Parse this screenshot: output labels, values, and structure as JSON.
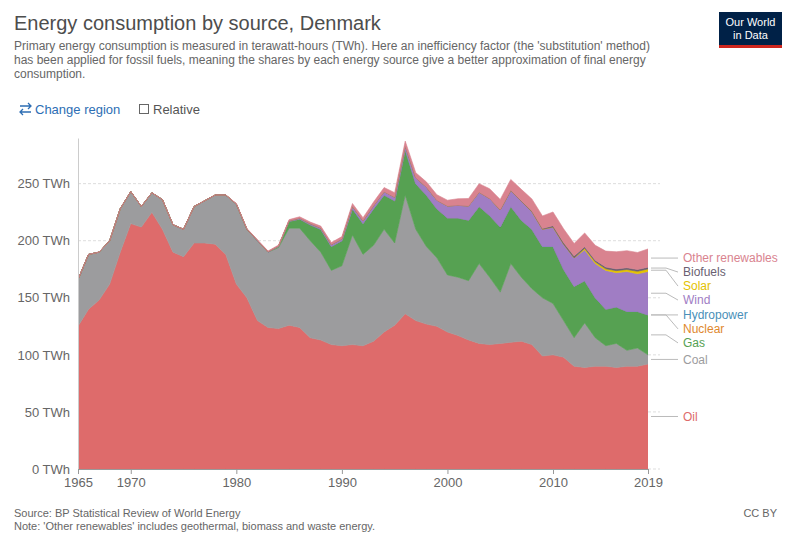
{
  "chart_data": {
    "type": "area",
    "title": "Energy consumption by source, Denmark",
    "subtitle": [
      "Primary energy consumption is measured in terawatt-hours (TWh). Here an inefficiency factor (the 'substitution' method)",
      "has been applied for fossil fuels, meaning the shares by each energy source give a better approximation of final energy",
      "consumption."
    ],
    "logo_text": [
      "Our World",
      "in Data"
    ],
    "controls": [
      "Change region",
      "Relative"
    ],
    "source": "Source: BP Statistical Review of World Energy",
    "note": "Note: 'Other renewables' includes geothermal, biomass and waste energy.",
    "license": "CC BY",
    "stacked": true,
    "grid": true,
    "legend": "right",
    "x": [
      1965,
      1966,
      1967,
      1968,
      1969,
      1970,
      1971,
      1972,
      1973,
      1974,
      1975,
      1976,
      1977,
      1978,
      1979,
      1980,
      1981,
      1982,
      1983,
      1984,
      1985,
      1986,
      1987,
      1988,
      1989,
      1990,
      1991,
      1992,
      1993,
      1994,
      1995,
      1996,
      1997,
      1998,
      1999,
      2000,
      2001,
      2002,
      2003,
      2004,
      2005,
      2006,
      2007,
      2008,
      2009,
      2010,
      2011,
      2012,
      2013,
      2014,
      2015,
      2016,
      2017,
      2018,
      2019
    ],
    "xlim": [
      1965,
      2019
    ],
    "xticks": [
      1965,
      1970,
      1980,
      1990,
      2000,
      2010,
      2019
    ],
    "ylim": [
      0,
      290
    ],
    "yticks": [
      {
        "value": 0,
        "label": "0 TWh"
      },
      {
        "value": 50,
        "label": "50 TWh"
      },
      {
        "value": 100,
        "label": "100 TWh"
      },
      {
        "value": 150,
        "label": "150 TWh"
      },
      {
        "value": 200,
        "label": "200 TWh"
      },
      {
        "value": 250,
        "label": "250 TWh"
      }
    ],
    "series": [
      {
        "name": "Oil",
        "color": "#de6b6b",
        "values": [
          125,
          140,
          148,
          162,
          190,
          215,
          212,
          225,
          210,
          190,
          186,
          198,
          198,
          197,
          188,
          162,
          150,
          130,
          124,
          123,
          126,
          124,
          115,
          113,
          109,
          108,
          109,
          108,
          112,
          120,
          126,
          136,
          130,
          127,
          125,
          120,
          117,
          113,
          110,
          109,
          110,
          111,
          112,
          109,
          99,
          100,
          98,
          90,
          89,
          90,
          90,
          89,
          90,
          90,
          92
        ]
      },
      {
        "name": "Coal",
        "color": "#9c9c9e",
        "values": [
          41,
          48,
          42,
          38,
          38,
          28,
          18,
          17,
          26,
          24,
          24,
          32,
          37,
          43,
          52,
          70,
          60,
          70,
          66,
          71,
          85,
          87,
          85,
          77,
          65,
          70,
          96,
          80,
          84,
          90,
          72,
          104,
          80,
          68,
          60,
          50,
          51,
          52,
          70,
          59,
          45,
          69,
          56,
          49,
          51,
          45,
          32,
          25,
          39,
          25,
          18,
          21,
          14,
          16,
          8
        ]
      },
      {
        "name": "Gas",
        "color": "#56a152",
        "values": [
          0,
          0,
          0,
          0,
          0,
          0,
          0,
          0,
          0,
          0,
          0,
          0,
          0,
          0,
          0,
          0,
          0,
          0,
          0,
          1,
          6,
          8,
          14,
          20,
          21,
          22,
          23,
          27,
          32,
          30,
          37,
          40,
          40,
          45,
          43,
          50,
          52,
          53,
          50,
          54,
          57,
          50,
          50,
          52,
          45,
          50,
          45,
          45,
          37,
          35,
          32,
          32,
          34,
          32,
          35
        ]
      },
      {
        "name": "Nuclear",
        "color": "#e0892e",
        "values": [
          0,
          0,
          0,
          0,
          0,
          0,
          0,
          0,
          0,
          0,
          0,
          0,
          0,
          0,
          0,
          0,
          0,
          0,
          0,
          0,
          0,
          0,
          0,
          0,
          0,
          0,
          0,
          0,
          0,
          0,
          0,
          0,
          0,
          0,
          0,
          0,
          0,
          0,
          0,
          0,
          0,
          0,
          0,
          0,
          0,
          0,
          0,
          0,
          0,
          0,
          0,
          0,
          0,
          0,
          0
        ]
      },
      {
        "name": "Hydropower",
        "color": "#4a8fb8",
        "values": [
          0,
          0,
          0,
          0,
          0,
          0,
          0,
          0,
          0,
          0,
          0,
          0,
          0,
          0,
          0,
          0,
          0,
          0,
          0,
          0,
          0,
          0,
          0,
          0,
          0,
          0,
          0,
          0,
          0,
          0,
          0,
          0,
          0,
          0,
          0,
          0,
          0,
          0,
          0,
          0,
          0,
          0,
          0,
          0,
          0,
          0,
          0,
          0,
          0,
          0,
          0,
          0,
          0,
          0,
          0
        ]
      },
      {
        "name": "Wind",
        "color": "#a07dc4",
        "values": [
          0,
          0,
          0,
          0,
          0,
          0,
          0,
          0,
          0,
          0,
          0,
          0,
          0,
          0.1,
          0.1,
          0.2,
          0.2,
          0.3,
          0.3,
          0.4,
          0.5,
          0.8,
          1,
          1.2,
          1.6,
          1.6,
          2.2,
          2.4,
          2.7,
          3,
          3.1,
          3.1,
          5.2,
          7,
          7.5,
          10.5,
          11,
          12.5,
          12.5,
          15,
          15,
          14,
          16.5,
          15.5,
          15,
          17,
          22,
          25,
          27,
          30,
          34,
          30,
          35,
          33,
          38
        ]
      },
      {
        "name": "Solar",
        "color": "#e3c200",
        "values": [
          0,
          0,
          0,
          0,
          0,
          0,
          0,
          0,
          0,
          0,
          0,
          0,
          0,
          0,
          0,
          0,
          0,
          0,
          0,
          0,
          0,
          0,
          0,
          0,
          0,
          0,
          0,
          0,
          0,
          0,
          0,
          0,
          0,
          0,
          0,
          0,
          0,
          0,
          0,
          0,
          0,
          0,
          0,
          0,
          0,
          0,
          0,
          0,
          1.3,
          1.5,
          1.4,
          1.8,
          1.8,
          2.2,
          2.3
        ]
      },
      {
        "name": "Biofuels",
        "color": "#6a5f72",
        "values": [
          0,
          0,
          0,
          0,
          0,
          0,
          0,
          0,
          0,
          0,
          0,
          0,
          0,
          0,
          0,
          0,
          0,
          0,
          0,
          0,
          0,
          0,
          0,
          0,
          0,
          0,
          0,
          0,
          0,
          0,
          0,
          0,
          0,
          0,
          0,
          0,
          0,
          0,
          0,
          0,
          0.2,
          0.2,
          0.5,
          0.6,
          0.7,
          1.2,
          1.5,
          1.6,
          1.5,
          1.5,
          1.5,
          1.5,
          1.5,
          1.5,
          1.5
        ]
      },
      {
        "name": "Other renewables",
        "color": "#d9838f",
        "values": [
          0,
          0,
          0,
          0,
          0,
          0,
          0,
          0,
          0,
          0,
          0,
          0,
          0,
          0,
          0,
          0.4,
          0.5,
          0.6,
          0.7,
          0.8,
          1,
          1.2,
          1.4,
          1.6,
          1.8,
          2,
          2.4,
          2.8,
          3.2,
          3.6,
          4,
          4.2,
          4.4,
          4.6,
          4.8,
          5,
          5.8,
          6.5,
          7.5,
          8.5,
          9,
          9.5,
          10,
          10.5,
          11,
          12,
          12,
          11,
          12,
          13,
          14,
          15,
          15,
          15,
          16
        ]
      }
    ]
  }
}
